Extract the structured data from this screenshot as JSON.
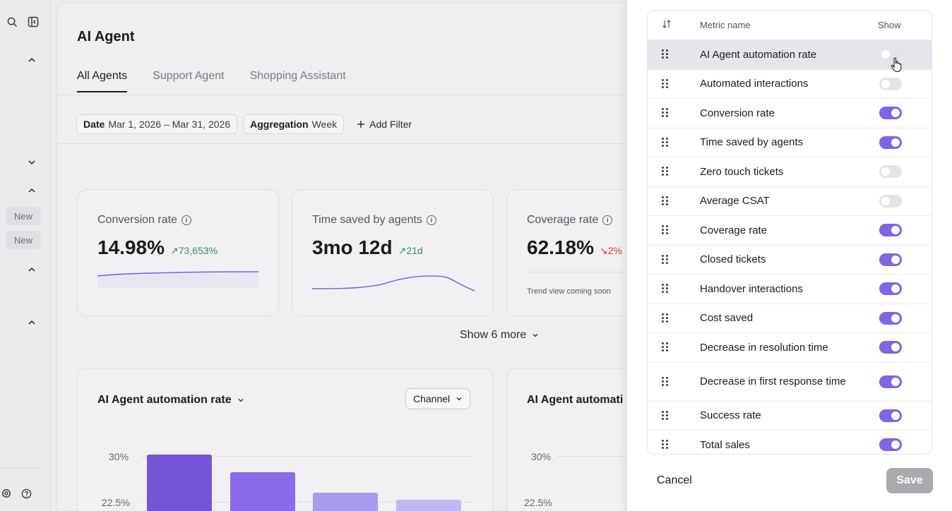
{
  "rail": {
    "badges": [
      "New",
      "New"
    ]
  },
  "page": {
    "title": "AI Agent",
    "tabs": [
      {
        "label": "All Agents",
        "active": true
      },
      {
        "label": "Support Agent",
        "active": false
      },
      {
        "label": "Shopping Assistant",
        "active": false
      }
    ],
    "filters": {
      "date_key": "Date",
      "date_value": "Mar 1, 2026 – Mar 31, 2026",
      "agg_key": "Aggregation",
      "agg_value": "Week",
      "add_filter": "Add Filter"
    }
  },
  "cards": [
    {
      "label": "Conversion rate",
      "value": "14.98%",
      "trend": "73,653%",
      "direction": "up"
    },
    {
      "label": "Time saved by agents",
      "value": "3mo 12d",
      "trend": "21d",
      "direction": "up"
    },
    {
      "label": "Coverage rate",
      "value": "62.18%",
      "trend": "2%",
      "direction": "down",
      "note": "Trend view coming soon"
    }
  ],
  "show_more": "Show 6 more",
  "charts": [
    {
      "title": "AI Agent automation rate",
      "control": "Channel",
      "yticks": [
        "30%",
        "22.5%"
      ]
    },
    {
      "title": "AI Agent automati",
      "yticks": [
        "30%",
        "22.5%"
      ]
    }
  ],
  "chart_data": {
    "type": "bar",
    "title": "AI Agent automation rate",
    "yticks": [
      "30%",
      "22.5%"
    ],
    "values": [
      30,
      27.3,
      25.5,
      24.8
    ],
    "colors": [
      "#7555d6",
      "#8a6bea",
      "#aa9aee",
      "#c3b7f3"
    ]
  },
  "panel": {
    "headers": {
      "name": "Metric name",
      "show": "Show"
    },
    "metrics": [
      {
        "name": "AI Agent automation rate",
        "on": false
      },
      {
        "name": "Automated interactions",
        "on": false
      },
      {
        "name": "Conversion rate",
        "on": true
      },
      {
        "name": "Time saved by agents",
        "on": true
      },
      {
        "name": "Zero touch tickets",
        "on": false
      },
      {
        "name": "Average CSAT",
        "on": false
      },
      {
        "name": "Coverage rate",
        "on": true
      },
      {
        "name": "Closed tickets",
        "on": true
      },
      {
        "name": "Handover interactions",
        "on": true
      },
      {
        "name": "Cost saved",
        "on": true
      },
      {
        "name": "Decrease in resolution time",
        "on": true
      },
      {
        "name": "Decrease in first response time",
        "on": true
      },
      {
        "name": "Success rate",
        "on": true
      },
      {
        "name": "Total sales",
        "on": true
      }
    ],
    "cancel": "Cancel",
    "save": "Save"
  },
  "colors": {
    "accent": "#8063e6",
    "trend_up": "#3a8a6a",
    "trend_down": "#d03a3a"
  }
}
